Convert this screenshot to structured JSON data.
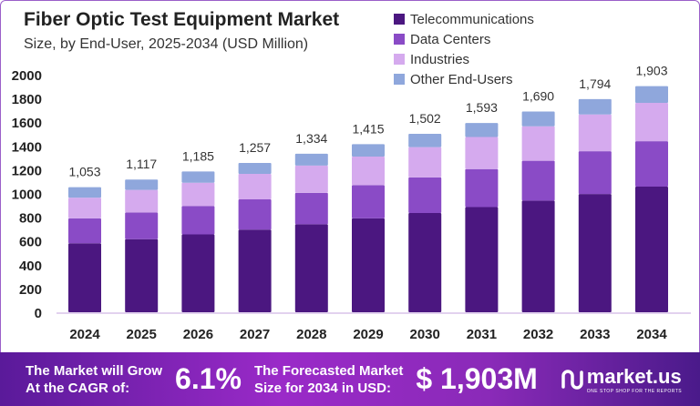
{
  "chart_data": {
    "type": "bar",
    "stacked": true,
    "title": "Fiber Optic Test Equipment Market",
    "subtitle": "Size, by End-User, 2025-2034 (USD Million)",
    "categories": [
      "2024",
      "2025",
      "2026",
      "2027",
      "2028",
      "2029",
      "2030",
      "2031",
      "2032",
      "2033",
      "2034"
    ],
    "ylim": [
      0,
      2000
    ],
    "yticks": [
      0,
      200,
      400,
      600,
      800,
      1000,
      1200,
      1400,
      1600,
      1800,
      2000
    ],
    "legend_position": "top-right",
    "series": [
      {
        "name": "Telecommunications",
        "color": "#4b1780",
        "values": [
          580,
          615,
          655,
          695,
          740,
          790,
          835,
          885,
          940,
          995,
          1057
        ]
      },
      {
        "name": "Data Centers",
        "color": "#8a4bc6",
        "values": [
          210,
          225,
          240,
          255,
          265,
          280,
          300,
          320,
          335,
          360,
          383
        ]
      },
      {
        "name": "Industries",
        "color": "#d5aaee",
        "values": [
          175,
          190,
          195,
          215,
          230,
          240,
          255,
          270,
          290,
          310,
          322
        ]
      },
      {
        "name": "Other End-Users",
        "color": "#8fa7dc",
        "values": [
          88,
          87,
          95,
          92,
          99,
          105,
          112,
          118,
          125,
          129,
          141
        ]
      }
    ],
    "totals": [
      "1,053",
      "1,117",
      "1,185",
      "1,257",
      "1,334",
      "1,415",
      "1,502",
      "1,593",
      "1,690",
      "1,794",
      "1,903"
    ]
  },
  "banner": {
    "cagr_text1": "The Market will Grow",
    "cagr_text2": "At the CAGR of:",
    "cagr": "6.1%",
    "forecast_text1": "The Forecasted Market",
    "forecast_text2": "Size for 2034 in USD:",
    "forecast": "$ 1,903M",
    "logo": "market.us",
    "logo_tagline": "ONE STOP SHOP FOR THE REPORTS"
  }
}
